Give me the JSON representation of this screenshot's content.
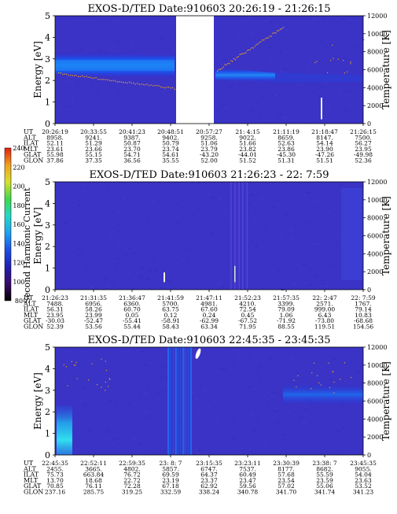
{
  "colorbar": {
    "label": "Second Harmonic Current",
    "ticks": [
      "80",
      "100",
      "120",
      "140",
      "160",
      "180",
      "200",
      "220",
      "240"
    ],
    "colors": [
      "#000000",
      "#3a0a6a",
      "#1f1fb0",
      "#1b4fe8",
      "#1ea3f0",
      "#25d8c8",
      "#3fd84a",
      "#d8e030",
      "#f0a020",
      "#e02010"
    ]
  },
  "chart_data": [
    {
      "type": "heatmap",
      "title": "EXOS-D/TED   Date:910603   20:26:19 - 21:26:15",
      "ylabel": "Energy [eV]",
      "y2label": "Temperature [K]",
      "ylim": [
        0,
        5
      ],
      "y2lim": [
        0,
        12000
      ],
      "yticks": [
        "0",
        "1",
        "2",
        "3",
        "4",
        "5"
      ],
      "y2ticks": [
        "0",
        "2000",
        "4000",
        "6000",
        "8000",
        "10000",
        "12000"
      ],
      "gap": true,
      "rows": [
        {
          "name": "UT",
          "values": [
            "20:26:19",
            "20:33:55",
            "20:41:23",
            "20:48:51",
            "20:57:27",
            "21: 4:15",
            "21:11:19",
            "21:18:47",
            "21:26:15"
          ]
        },
        {
          "name": "ALT",
          "values": [
            "8958.",
            "9241.",
            "9387.",
            "9402.",
            "9258.",
            "9022.",
            "8659.",
            "8147.",
            "7500."
          ]
        },
        {
          "name": "ILAT",
          "values": [
            "52.11",
            "51.29",
            "50.87",
            "50.79",
            "51.06",
            "51.66",
            "52.63",
            "54.14",
            "56.27"
          ]
        },
        {
          "name": "MLT",
          "values": [
            "23.61",
            "23.66",
            "23.70",
            "23.74",
            "23.79",
            "23.82",
            "23.86",
            "23.90",
            "23.95"
          ]
        },
        {
          "name": "GLAT",
          "values": [
            "55.98",
            "55.15",
            "54.71",
            "54.61",
            "-43.20",
            "-44.01",
            "-45.30",
            "-47.26",
            "-49.98"
          ]
        },
        {
          "name": "GLON",
          "values": [
            "37.86",
            "37.35",
            "36.56",
            "35.55",
            "52.00",
            "51.52",
            "51.31",
            "51.51",
            "52.36"
          ]
        }
      ]
    },
    {
      "type": "heatmap",
      "title": "EXOS-D/TED   Date:910603   21:26:23 - 22: 7:59",
      "ylabel": "Energy [eV]",
      "y2label": "Temperature [K]",
      "ylim": [
        0,
        5
      ],
      "y2lim": [
        0,
        12000
      ],
      "yticks": [
        "0",
        "1",
        "2",
        "3",
        "4",
        "5"
      ],
      "y2ticks": [
        "0",
        "2000",
        "4000",
        "6000",
        "8000",
        "10000",
        "12000"
      ],
      "gap": false,
      "rows": [
        {
          "name": "UT",
          "values": [
            "21:26:23",
            "21:31:35",
            "21:36:47",
            "21:41:59",
            "21:47:11",
            "21:52:23",
            "21:57:35",
            "22: 2:47",
            "22: 7:59"
          ]
        },
        {
          "name": "ALT",
          "values": [
            "7488.",
            "6956.",
            "6360.",
            "5700.",
            "4981.",
            "4210.",
            "3399.",
            "2571.",
            "1767."
          ]
        },
        {
          "name": "ILAT",
          "values": [
            "56.31",
            "58.26",
            "60.70",
            "63.75",
            "67.60",
            "72.54",
            "79.09",
            "999.00",
            "79.14"
          ]
        },
        {
          "name": "MLT",
          "values": [
            "23.95",
            "23.99",
            "0.05",
            "0.12",
            "0.24",
            "0.45",
            "1.06",
            "6.43",
            "10.83"
          ]
        },
        {
          "name": "GLAT",
          "values": [
            "-30.03",
            "-52.47",
            "-55.41",
            "-58.91",
            "-62.99",
            "-67.52",
            "-71.92",
            "-73.80",
            "-68.68"
          ]
        },
        {
          "name": "GLON",
          "values": [
            "52.39",
            "53.56",
            "55.44",
            "58.43",
            "63.34",
            "71.95",
            "88.55",
            "119.51",
            "154.56"
          ]
        }
      ]
    },
    {
      "type": "heatmap",
      "title": "EXOS-D/TED   Date:910603   22:45:35 - 23:45:35",
      "ylabel": "Energy [eV]",
      "y2label": "Temperature [K]",
      "ylim": [
        0,
        5
      ],
      "y2lim": [
        0,
        12000
      ],
      "yticks": [
        "0",
        "1",
        "2",
        "3",
        "4",
        "5"
      ],
      "y2ticks": [
        "0",
        "2000",
        "4000",
        "6000",
        "8000",
        "10000",
        "12000"
      ],
      "gap": false,
      "rows": [
        {
          "name": "UT",
          "values": [
            "22:45:35",
            "22:52:11",
            "22:59:35",
            "23: 8: 7",
            "23:15:35",
            "23:23:11",
            "23:30:39",
            "23:38: 7",
            "23:45:35"
          ]
        },
        {
          "name": "ALT",
          "values": [
            "2455.",
            "3665.",
            "4802.",
            "5857.",
            "6747.",
            "7537.",
            "8177.",
            "8682.",
            "9055."
          ]
        },
        {
          "name": "ILAT",
          "values": [
            "75.73",
            "663.84",
            "76.72",
            "69.59",
            "64.37",
            "60.49",
            "57.68",
            "55.59",
            "54.04"
          ]
        },
        {
          "name": "MLT",
          "values": [
            "13.70",
            "18.68",
            "22.72",
            "23.19",
            "23.37",
            "23.47",
            "23.54",
            "23.59",
            "23.63"
          ]
        },
        {
          "name": "GLAT",
          "values": [
            "70.85",
            "76.11",
            "72.28",
            "67.18",
            "62.92",
            "59.56",
            "57.02",
            "55.06",
            "53.52"
          ]
        },
        {
          "name": "GLON",
          "values": [
            "237.16",
            "285.75",
            "319.25",
            "332.59",
            "338.24",
            "340.78",
            "341.70",
            "341.74",
            "341.23"
          ]
        }
      ]
    }
  ]
}
